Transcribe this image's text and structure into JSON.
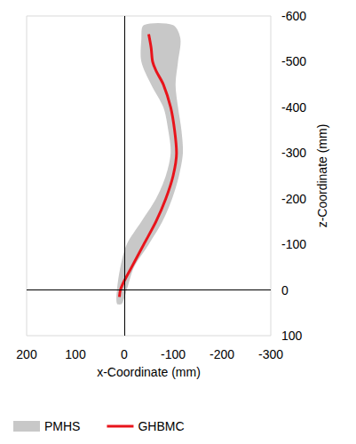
{
  "chart_data": {
    "type": "line",
    "xlabel": "x-Coordinate (mm)",
    "ylabel": "z-Coordinate (mm)",
    "xlim": [
      200,
      -300
    ],
    "xticks": [
      200,
      100,
      0,
      -100,
      -200,
      -300
    ],
    "ylim": [
      100,
      -600
    ],
    "yticks": [
      100,
      0,
      -100,
      -200,
      -300,
      -400,
      -500,
      -600
    ],
    "grid": false,
    "legend": "bottom",
    "series": [
      {
        "name": "PMHS",
        "type": "area",
        "color": "#c8c8c8",
        "y": [
          30,
          0,
          -50,
          -100,
          -150,
          -200,
          -250,
          -300,
          -350,
          -400,
          -450,
          -500,
          -550,
          -580
        ],
        "x_low": [
          5,
          -5,
          -20,
          -50,
          -78,
          -98,
          -112,
          -120,
          -117,
          -110,
          -105,
          -110,
          -115,
          -100
        ],
        "x_high": [
          15,
          15,
          8,
          -5,
          -35,
          -65,
          -85,
          -95,
          -90,
          -80,
          -55,
          -35,
          -35,
          -40
        ]
      },
      {
        "name": "GHBMC",
        "type": "line",
        "color": "#e8141b",
        "x": [
          10,
          8,
          0,
          -15,
          -40,
          -65,
          -85,
          -100,
          -107,
          -103,
          -95,
          -80,
          -65,
          -58,
          -55,
          -50
        ],
        "y": [
          15,
          0,
          -20,
          -50,
          -100,
          -150,
          -200,
          -250,
          -300,
          -350,
          -400,
          -450,
          -480,
          -500,
          -530,
          -560
        ]
      }
    ]
  }
}
